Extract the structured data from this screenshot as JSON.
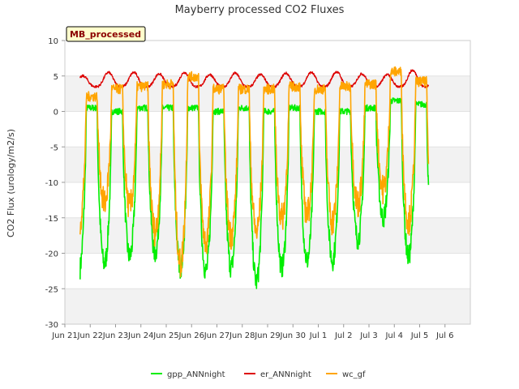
{
  "chart_data": {
    "type": "line",
    "title": "Mayberry processed CO2 Fluxes",
    "ylabel": "CO2 Flux (urology/m2/s)",
    "xlabel": "",
    "badge": "MB_processed",
    "ylim": [
      -30,
      10
    ],
    "yticks": [
      10,
      5,
      0,
      -5,
      -10,
      -15,
      -20,
      -25,
      -30
    ],
    "xlim": [
      0,
      16
    ],
    "xticks": [
      {
        "x": 0,
        "label": "Jun 21"
      },
      {
        "x": 1,
        "label": "Jun 22"
      },
      {
        "x": 2,
        "label": "Jun 23"
      },
      {
        "x": 3,
        "label": "Jun 24"
      },
      {
        "x": 4,
        "label": "Jun 25"
      },
      {
        "x": 5,
        "label": "Jun 26"
      },
      {
        "x": 6,
        "label": "Jun 27"
      },
      {
        "x": 7,
        "label": "Jun 28"
      },
      {
        "x": 8,
        "label": "Jun 29"
      },
      {
        "x": 9,
        "label": "Jun 30"
      },
      {
        "x": 10,
        "label": "Jul 1"
      },
      {
        "x": 11,
        "label": "Jul 2"
      },
      {
        "x": 12,
        "label": "Jul 3"
      },
      {
        "x": 13,
        "label": "Jul 4"
      },
      {
        "x": 14,
        "label": "Jul 5"
      },
      {
        "x": 15,
        "label": "Jul 6"
      }
    ],
    "x_start": 0.6,
    "x_end": 14.35,
    "series": [
      {
        "name": "gpp_ANNnight",
        "color": "#00ee00",
        "daily_min": [
          -22.5,
          -21.5,
          -20.5,
          -20,
          -22,
          -22.5,
          -22,
          -24,
          -22,
          -21,
          -21,
          -18,
          -15,
          -20.5
        ],
        "day_max": [
          0.5,
          0,
          0.5,
          0.5,
          0.5,
          0,
          0.5,
          0,
          0.5,
          0,
          0,
          0.5,
          1.5,
          1
        ]
      },
      {
        "name": "er_ANNnight",
        "color": "#dd0000",
        "baseline": 3.5,
        "daily_peak": [
          5,
          5.5,
          5.5,
          5.3,
          5.5,
          5.2,
          5.4,
          5.2,
          5.4,
          5.5,
          5.6,
          5.3,
          5.2,
          5.8
        ]
      },
      {
        "name": "wc_gf",
        "color": "#ffa500",
        "daily_min": [
          -16,
          -13,
          -13.5,
          -17,
          -21.5,
          -18.5,
          -17.5,
          -17,
          -15,
          -14.5,
          -15.5,
          -13,
          -11,
          -15.5
        ],
        "day_max": [
          3,
          4.5,
          5,
          5.5,
          7,
          4.5,
          4.5,
          4.5,
          5,
          4.5,
          5,
          5.5,
          8,
          6
        ]
      }
    ],
    "legend_position": "bottom"
  }
}
